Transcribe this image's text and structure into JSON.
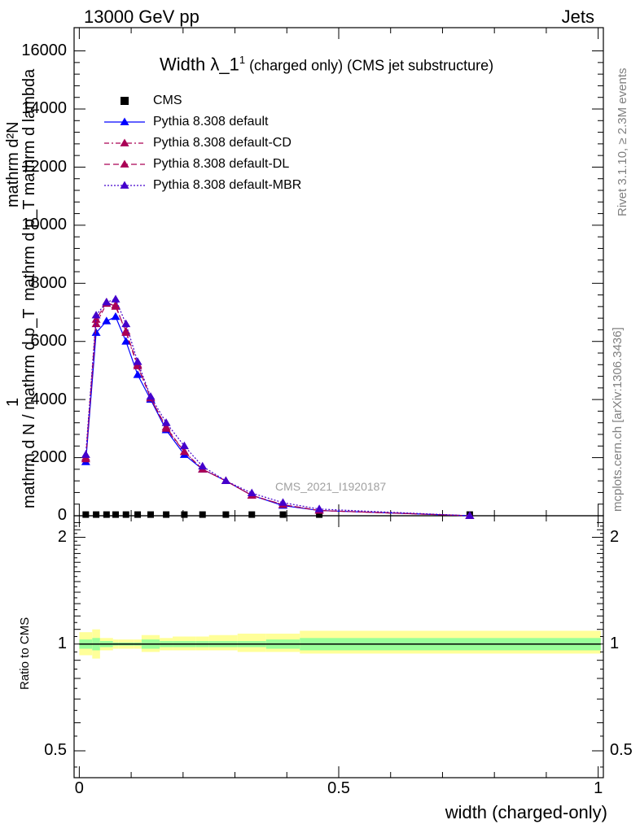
{
  "header": {
    "left": "13000 GeV pp",
    "right": "Jets"
  },
  "side": {
    "rivet": "Rivet 3.1.10, ≥ 2.3M events",
    "mcplots": "mcplots.cern.ch [arXiv:1306.3436]"
  },
  "watermark": "CMS_2021_I1920187",
  "title": {
    "main": "Width λ_1",
    "sup": "1",
    "sub": " (charged only) (CMS jet substructure)"
  },
  "ylabel_main": {
    "numerator": "mathrm d²N",
    "denominator": "mathrm d p_T mathrm d lambda",
    "one": "1",
    "frac_den": "mathrm d N / mathrm d p_T"
  },
  "ylabel_ratio": "Ratio to CMS",
  "xlabel": "width (charged-only)",
  "colors": {
    "data": "#000000",
    "default": "#0000ff",
    "cd": "#aa0055",
    "dl": "#aa0055",
    "mbr": "#4400cc",
    "band_outer": "#ffff99",
    "band_inner": "#99ff99"
  },
  "chart_data": [
    {
      "type": "line",
      "xlim": [
        -0.01,
        1.01
      ],
      "ylim": [
        0,
        16800
      ],
      "yticks": [
        0,
        2000,
        4000,
        6000,
        8000,
        10000,
        12000,
        14000,
        16000
      ],
      "ytick_labels": [
        "0",
        "2000",
        "4000",
        "6000",
        "8000",
        "10000",
        "12000",
        "14000",
        "16000"
      ],
      "x": [
        0.0125,
        0.0325,
        0.0525,
        0.07,
        0.09,
        0.1125,
        0.1375,
        0.1675,
        0.2025,
        0.2375,
        0.2825,
        0.3325,
        0.3925,
        0.4625,
        0.7525
      ],
      "legend": [
        {
          "name": "CMS",
          "style": "data"
        },
        {
          "name": "Pythia 8.308 default",
          "style": "default"
        },
        {
          "name": "Pythia 8.308 default-CD",
          "style": "cd"
        },
        {
          "name": "Pythia 8.308 default-DL",
          "style": "dl"
        },
        {
          "name": "Pythia 8.308 default-MBR",
          "style": "mbr"
        }
      ],
      "series": [
        {
          "name": "CMS",
          "values": [
            40,
            40,
            40,
            40,
            40,
            40,
            40,
            40,
            40,
            40,
            40,
            40,
            40,
            40,
            40
          ]
        },
        {
          "name": "Pythia 8.308 default",
          "values": [
            1850,
            6300,
            6700,
            6850,
            6000,
            4850,
            4000,
            2950,
            2100,
            1600,
            1200,
            700,
            350,
            180,
            0
          ]
        },
        {
          "name": "Pythia 8.308 default-CD",
          "values": [
            1950,
            6600,
            7300,
            7250,
            6300,
            5150,
            4050,
            3000,
            2200,
            1600,
            1200,
            700,
            380,
            180,
            0
          ]
        },
        {
          "name": "Pythia 8.308 default-DL",
          "values": [
            2000,
            6750,
            7350,
            7200,
            6350,
            5200,
            4050,
            3050,
            2200,
            1600,
            1200,
            700,
            380,
            180,
            0
          ]
        },
        {
          "name": "Pythia 8.308 default-MBR",
          "values": [
            2100,
            6900,
            7350,
            7450,
            6600,
            5300,
            4100,
            3200,
            2400,
            1700,
            1200,
            780,
            450,
            230,
            0
          ]
        }
      ]
    },
    {
      "type": "area",
      "xlim": [
        -0.01,
        1.01
      ],
      "ylim": [
        0.42,
        2.3
      ],
      "log_y": true,
      "yticks": [
        0.5,
        1,
        2
      ],
      "ytick_labels": [
        "0.5",
        "1",
        "2"
      ],
      "xticks": [
        0,
        0.5,
        1
      ],
      "xtick_labels": [
        "0",
        "0.5",
        "1"
      ],
      "bins": [
        0,
        0.025,
        0.04,
        0.065,
        0.075,
        0.105,
        0.12,
        0.155,
        0.18,
        0.225,
        0.25,
        0.305,
        0.36,
        0.425,
        0.5,
        1.005
      ],
      "outer_low": [
        0.93,
        0.91,
        0.96,
        0.97,
        0.97,
        0.97,
        0.95,
        0.96,
        0.96,
        0.96,
        0.96,
        0.95,
        0.95,
        0.94,
        0.94
      ],
      "outer_high": [
        1.08,
        1.1,
        1.04,
        1.03,
        1.03,
        1.03,
        1.06,
        1.04,
        1.05,
        1.05,
        1.06,
        1.07,
        1.07,
        1.09,
        1.09
      ],
      "inner_low": [
        0.97,
        0.96,
        0.98,
        0.99,
        0.99,
        0.99,
        0.97,
        0.98,
        0.98,
        0.98,
        0.98,
        0.98,
        0.97,
        0.96,
        0.96
      ],
      "inner_high": [
        1.03,
        1.04,
        1.02,
        1.01,
        1.01,
        1.01,
        1.03,
        1.02,
        1.02,
        1.02,
        1.02,
        1.02,
        1.03,
        1.04,
        1.04
      ]
    }
  ]
}
